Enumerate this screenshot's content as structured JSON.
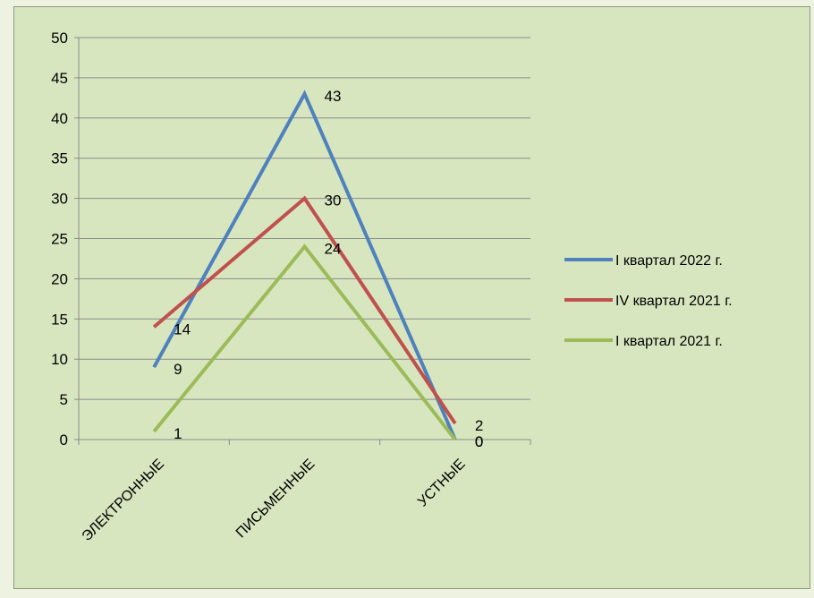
{
  "chart_data": {
    "type": "line",
    "categories": [
      "ЭЛЕКТРОННЫЕ",
      "ПИСЬМЕННЫЕ",
      "УСТНЫЕ"
    ],
    "series": [
      {
        "name": "I квартал 2022 г.",
        "values": [
          9,
          43,
          0
        ],
        "labels": [
          "9",
          "43",
          "0"
        ],
        "color": "#4f81bd"
      },
      {
        "name": "IV квартал 2021 г.",
        "values": [
          14,
          30,
          2
        ],
        "labels": [
          "14",
          "30",
          "2"
        ],
        "color": "#c0504d"
      },
      {
        "name": "I квартал 2021 г.",
        "values": [
          1,
          24,
          0
        ],
        "labels": [
          "1",
          "24",
          "0"
        ],
        "color": "#9bbb59"
      }
    ],
    "yticks": [
      "0",
      "5",
      "10",
      "15",
      "20",
      "25",
      "30",
      "35",
      "40",
      "45",
      "50"
    ],
    "ylim": [
      0,
      50
    ],
    "grid": true,
    "legend": "right"
  }
}
